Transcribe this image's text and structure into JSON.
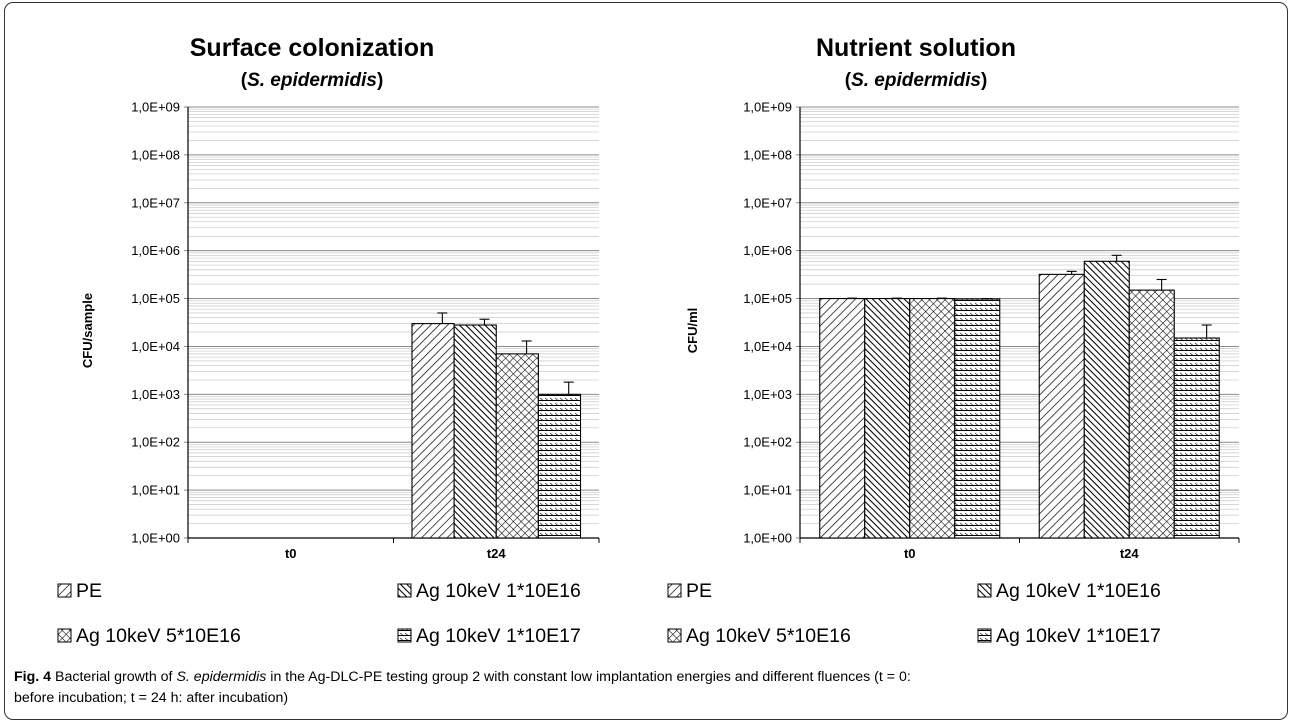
{
  "chart_data": [
    {
      "type": "bar",
      "title": "Surface colonization",
      "subtitle": "(S. epidermidis)",
      "subtitle_parts": [
        "(",
        "S. epidermidis",
        ")"
      ],
      "ylabel": "CFU/sample",
      "xlabel": "",
      "y_scale": "log",
      "ylim": [
        1,
        1000000000
      ],
      "y_ticks": [
        1,
        10,
        100,
        1000,
        10000,
        100000,
        1000000,
        10000000,
        100000000,
        1000000000
      ],
      "y_tick_labels": [
        "1,0E+00",
        "1,0E+01",
        "1,0E+02",
        "1,0E+03",
        "1,0E+04",
        "1,0E+05",
        "1,0E+06",
        "1,0E+07",
        "1,0E+08",
        "1,0E+09"
      ],
      "categories": [
        "t0",
        "t24"
      ],
      "grid": true,
      "legend_position": "bottom",
      "series": [
        {
          "name": "PE",
          "values": [
            null,
            30000
          ],
          "error_upper": [
            null,
            50000
          ]
        },
        {
          "name": "Ag 10keV 1*10E16",
          "values": [
            null,
            28000
          ],
          "error_upper": [
            null,
            37000
          ]
        },
        {
          "name": "Ag 10keV 5*10E16",
          "values": [
            null,
            7000
          ],
          "error_upper": [
            null,
            13000
          ]
        },
        {
          "name": "Ag 10keV 1*10E17",
          "values": [
            null,
            1000
          ],
          "error_upper": [
            null,
            1800
          ]
        }
      ]
    },
    {
      "type": "bar",
      "title": "Nutrient solution",
      "subtitle": "(S. epidermidis)",
      "subtitle_parts": [
        "(",
        "S. epidermidis",
        ")"
      ],
      "ylabel": "CFU/ml",
      "xlabel": "",
      "y_scale": "log",
      "ylim": [
        1,
        1000000000
      ],
      "y_ticks": [
        1,
        10,
        100,
        1000,
        10000,
        100000,
        1000000,
        10000000,
        100000000,
        1000000000
      ],
      "y_tick_labels": [
        "1,0E+00",
        "1,0E+01",
        "1,0E+02",
        "1,0E+03",
        "1,0E+04",
        "1,0E+05",
        "1,0E+06",
        "1,0E+07",
        "1,0E+08",
        "1,0E+09"
      ],
      "categories": [
        "t0",
        "t24"
      ],
      "grid": true,
      "legend_position": "bottom",
      "series": [
        {
          "name": "PE",
          "values": [
            100000,
            320000
          ],
          "error_upper": [
            102000,
            370000
          ]
        },
        {
          "name": "Ag 10keV 1*10E16",
          "values": [
            100000,
            600000
          ],
          "error_upper": [
            102000,
            800000
          ]
        },
        {
          "name": "Ag 10keV 5*10E16",
          "values": [
            100000,
            150000
          ],
          "error_upper": [
            102000,
            250000
          ]
        },
        {
          "name": "Ag 10keV 1*10E17",
          "values": [
            98000,
            15000
          ],
          "error_upper": [
            100000,
            28000
          ]
        }
      ]
    }
  ],
  "caption": {
    "fig_label": "Fig. 4",
    "text_1": "  Bacterial growth of ",
    "species": "S. epidermidis",
    "text_2": " in the Ag-DLC-PE testing group 2 with constant low implantation energies and different fluences (t = 0:",
    "text_3": "before incubation; t = 24 h: after incubation)"
  },
  "colors": {
    "ink": "#000000",
    "grid": "#b3b3b3",
    "bar_fill": "#ffffff",
    "frame": "#333333"
  },
  "pattern_icons": [
    "diagonal-hatch-icon",
    "dense-diagonal-hatch-icon",
    "crosshatch-icon",
    "horizontal-hatch-icon"
  ]
}
